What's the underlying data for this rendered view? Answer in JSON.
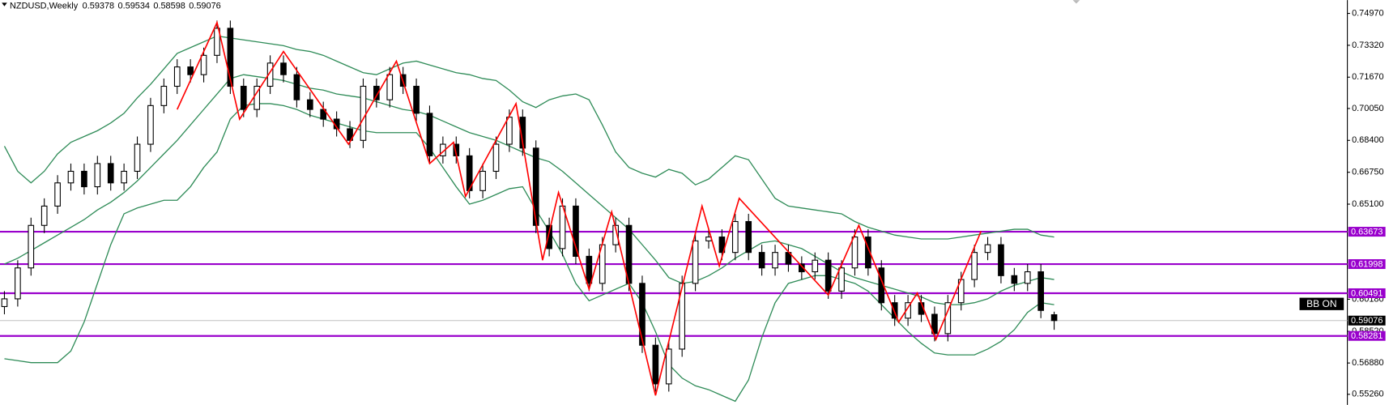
{
  "chart_data": {
    "type": "candlestick",
    "title": "NZDUSD,Weekly",
    "open": [
      0.598,
      0.602,
      0.618,
      0.64,
      0.65,
      0.662,
      0.668,
      0.66,
      0.672,
      0.662,
      0.668,
      0.682,
      0.702,
      0.712,
      0.722,
      0.718,
      0.728,
      0.742,
      0.712,
      0.7,
      0.712,
      0.724,
      0.718,
      0.705,
      0.7,
      0.695,
      0.69,
      0.684,
      0.712,
      0.705,
      0.718,
      0.712,
      0.698,
      0.676,
      0.682,
      0.676,
      0.658,
      0.668,
      0.682,
      0.696,
      0.68,
      0.64,
      0.628,
      0.65,
      0.624,
      0.61,
      0.63,
      0.64,
      0.61,
      0.578,
      0.558,
      0.576,
      0.61,
      0.632,
      0.634,
      0.626,
      0.642,
      0.626,
      0.618,
      0.626,
      0.62,
      0.616,
      0.622,
      0.606,
      0.618,
      0.634,
      0.618,
      0.6,
      0.592,
      0.6,
      0.594,
      0.584,
      0.6,
      0.612,
      0.626,
      0.63,
      0.614,
      0.61,
      0.616,
      0.59378
    ],
    "high": [
      0.606,
      0.622,
      0.644,
      0.654,
      0.666,
      0.672,
      0.672,
      0.676,
      0.676,
      0.672,
      0.686,
      0.706,
      0.716,
      0.726,
      0.726,
      0.732,
      0.746,
      0.746,
      0.716,
      0.716,
      0.728,
      0.728,
      0.722,
      0.709,
      0.704,
      0.699,
      0.694,
      0.716,
      0.716,
      0.722,
      0.722,
      0.716,
      0.702,
      0.686,
      0.686,
      0.68,
      0.672,
      0.686,
      0.7,
      0.7,
      0.684,
      0.644,
      0.654,
      0.654,
      0.628,
      0.634,
      0.644,
      0.644,
      0.614,
      0.582,
      0.58,
      0.614,
      0.636,
      0.638,
      0.638,
      0.646,
      0.646,
      0.63,
      0.63,
      0.63,
      0.624,
      0.626,
      0.626,
      0.622,
      0.638,
      0.638,
      0.622,
      0.604,
      0.604,
      0.604,
      0.598,
      0.604,
      0.616,
      0.63,
      0.634,
      0.634,
      0.618,
      0.62,
      0.62,
      0.59534
    ],
    "low": [
      0.594,
      0.598,
      0.614,
      0.636,
      0.646,
      0.658,
      0.656,
      0.656,
      0.658,
      0.658,
      0.664,
      0.678,
      0.698,
      0.708,
      0.714,
      0.714,
      0.724,
      0.708,
      0.696,
      0.696,
      0.708,
      0.714,
      0.701,
      0.696,
      0.691,
      0.686,
      0.68,
      0.68,
      0.701,
      0.701,
      0.708,
      0.694,
      0.672,
      0.672,
      0.672,
      0.654,
      0.654,
      0.664,
      0.678,
      0.676,
      0.636,
      0.624,
      0.624,
      0.62,
      0.606,
      0.606,
      0.626,
      0.606,
      0.574,
      0.554,
      0.554,
      0.572,
      0.606,
      0.628,
      0.622,
      0.622,
      0.622,
      0.614,
      0.614,
      0.616,
      0.612,
      0.612,
      0.602,
      0.602,
      0.614,
      0.614,
      0.596,
      0.588,
      0.588,
      0.59,
      0.58,
      0.58,
      0.596,
      0.608,
      0.622,
      0.61,
      0.606,
      0.606,
      0.592,
      0.58598
    ],
    "close": [
      0.602,
      0.618,
      0.64,
      0.65,
      0.662,
      0.668,
      0.66,
      0.672,
      0.662,
      0.668,
      0.682,
      0.702,
      0.712,
      0.722,
      0.718,
      0.728,
      0.742,
      0.712,
      0.7,
      0.712,
      0.724,
      0.718,
      0.705,
      0.7,
      0.695,
      0.69,
      0.684,
      0.712,
      0.705,
      0.718,
      0.712,
      0.698,
      0.676,
      0.682,
      0.676,
      0.658,
      0.668,
      0.682,
      0.696,
      0.68,
      0.64,
      0.628,
      0.65,
      0.624,
      0.61,
      0.63,
      0.64,
      0.61,
      0.578,
      0.558,
      0.576,
      0.61,
      0.632,
      0.634,
      0.626,
      0.642,
      0.626,
      0.618,
      0.626,
      0.62,
      0.616,
      0.622,
      0.606,
      0.618,
      0.634,
      0.618,
      0.6,
      0.592,
      0.6,
      0.594,
      0.584,
      0.6,
      0.612,
      0.626,
      0.63,
      0.614,
      0.61,
      0.616,
      0.596,
      0.59076
    ],
    "up_color": "#ffffff",
    "down_color": "#000000",
    "bands": {
      "color": "#2e8b57",
      "upper": [
        0.681,
        0.668,
        0.662,
        0.668,
        0.677,
        0.683,
        0.686,
        0.689,
        0.693,
        0.698,
        0.706,
        0.713,
        0.721,
        0.729,
        0.732,
        0.735,
        0.738,
        0.737,
        0.736,
        0.735,
        0.734,
        0.733,
        0.731,
        0.73,
        0.728,
        0.725,
        0.722,
        0.719,
        0.718,
        0.721,
        0.724,
        0.725,
        0.723,
        0.721,
        0.719,
        0.718,
        0.716,
        0.715,
        0.71,
        0.704,
        0.701,
        0.705,
        0.707,
        0.708,
        0.705,
        0.692,
        0.678,
        0.67,
        0.667,
        0.665,
        0.669,
        0.667,
        0.661,
        0.664,
        0.67,
        0.676,
        0.674,
        0.664,
        0.654,
        0.65,
        0.649,
        0.648,
        0.647,
        0.646,
        0.642,
        0.639,
        0.637,
        0.635,
        0.634,
        0.633,
        0.633,
        0.633,
        0.634,
        0.635,
        0.636,
        0.637,
        0.638,
        0.638,
        0.635,
        0.634
      ],
      "middle": [
        0.62,
        0.623,
        0.627,
        0.631,
        0.635,
        0.639,
        0.643,
        0.648,
        0.652,
        0.657,
        0.663,
        0.67,
        0.677,
        0.684,
        0.692,
        0.7,
        0.708,
        0.716,
        0.718,
        0.717,
        0.716,
        0.715,
        0.713,
        0.711,
        0.71,
        0.708,
        0.707,
        0.706,
        0.704,
        0.702,
        0.7,
        0.699,
        0.697,
        0.694,
        0.691,
        0.688,
        0.686,
        0.684,
        0.681,
        0.678,
        0.675,
        0.673,
        0.668,
        0.662,
        0.656,
        0.65,
        0.644,
        0.638,
        0.63,
        0.622,
        0.613,
        0.61,
        0.611,
        0.614,
        0.618,
        0.623,
        0.627,
        0.631,
        0.632,
        0.63,
        0.628,
        0.624,
        0.62,
        0.616,
        0.613,
        0.611,
        0.609,
        0.607,
        0.605,
        0.603,
        0.6,
        0.599,
        0.599,
        0.6,
        0.602,
        0.606,
        0.609,
        0.611,
        0.613,
        0.612
      ],
      "lower": [
        0.571,
        0.57,
        0.569,
        0.569,
        0.569,
        0.575,
        0.59,
        0.61,
        0.63,
        0.646,
        0.649,
        0.651,
        0.653,
        0.653,
        0.66,
        0.67,
        0.678,
        0.695,
        0.702,
        0.703,
        0.703,
        0.702,
        0.7,
        0.697,
        0.695,
        0.693,
        0.691,
        0.689,
        0.688,
        0.688,
        0.688,
        0.688,
        0.68,
        0.67,
        0.66,
        0.651,
        0.653,
        0.656,
        0.659,
        0.66,
        0.648,
        0.637,
        0.625,
        0.61,
        0.601,
        0.604,
        0.607,
        0.61,
        0.6,
        0.585,
        0.568,
        0.561,
        0.557,
        0.555,
        0.552,
        0.549,
        0.56,
        0.582,
        0.6,
        0.61,
        0.612,
        0.614,
        0.614,
        0.612,
        0.61,
        0.606,
        0.599,
        0.592,
        0.585,
        0.579,
        0.574,
        0.573,
        0.573,
        0.573,
        0.576,
        0.58,
        0.586,
        0.595,
        0.6,
        0.599
      ]
    },
    "zigzag": {
      "color": "#ff0000",
      "x": [
        13,
        16,
        17.7,
        21,
        25.9,
        29.5,
        32,
        33.8,
        34.7,
        38.5,
        40.5,
        41.7,
        44,
        45.7,
        49,
        52.5,
        53.8,
        55.3,
        62,
        64.3,
        67.3,
        68.7,
        70.1,
        73.5
      ],
      "values": [
        0.7,
        0.745,
        0.695,
        0.73,
        0.682,
        0.725,
        0.672,
        0.683,
        0.655,
        0.703,
        0.622,
        0.657,
        0.607,
        0.647,
        0.552,
        0.65,
        0.619,
        0.654,
        0.604,
        0.64,
        0.59,
        0.605,
        0.581,
        0.637
      ]
    },
    "levels": {
      "color": "#9900cc",
      "values": [
        0.63673,
        0.61998,
        0.60491,
        0.58281
      ]
    },
    "ylim": [
      0.5471,
      0.7566
    ],
    "yticks": [
      {
        "value": 0.7497,
        "label": "0.74970"
      },
      {
        "value": 0.7332,
        "label": "0.73320"
      },
      {
        "value": 0.7167,
        "label": "0.71670"
      },
      {
        "value": 0.7005,
        "label": "0.70050"
      },
      {
        "value": 0.684,
        "label": "0.68400"
      },
      {
        "value": 0.6675,
        "label": "0.66750"
      },
      {
        "value": 0.651,
        "label": "0.65100"
      },
      {
        "value": 0.6018,
        "label": "0.60180"
      },
      {
        "value": 0.5852,
        "label": "0.58520"
      },
      {
        "value": 0.5688,
        "label": "0.56880"
      },
      {
        "value": 0.5526,
        "label": "0.55260"
      }
    ],
    "button": "BB ON"
  }
}
